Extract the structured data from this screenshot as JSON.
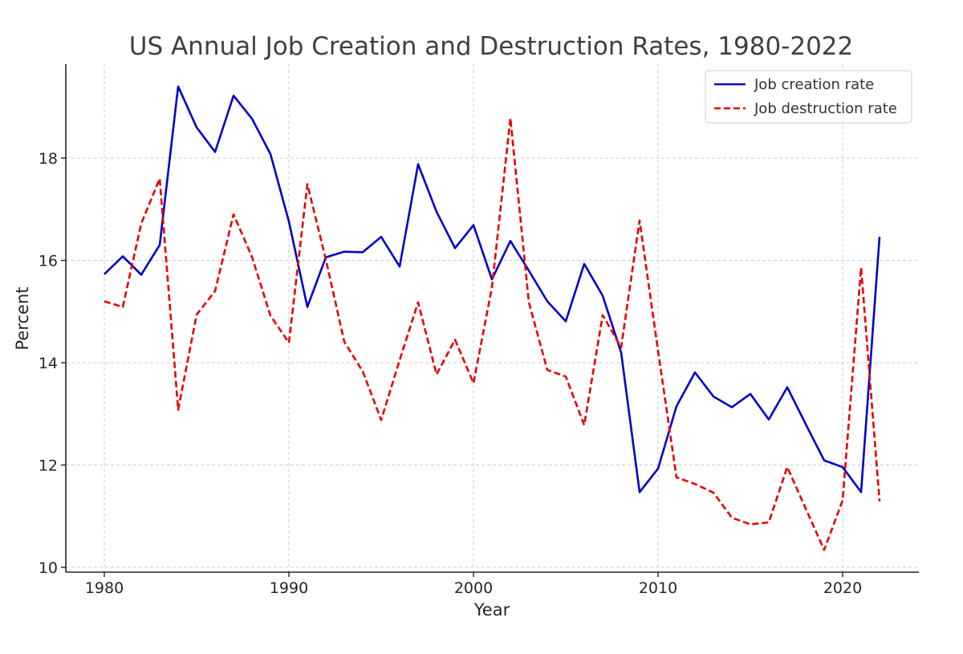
{
  "chart_data": {
    "type": "line",
    "title": "US Annual Job Creation and Destruction Rates, 1980-2022",
    "xlabel": "Year",
    "ylabel": "Percent",
    "xlim": [
      1978,
      2024
    ],
    "ylim": [
      9.8,
      19.8
    ],
    "x_ticks": [
      1980,
      1990,
      2000,
      2010,
      2020
    ],
    "y_ticks": [
      10,
      12,
      14,
      16,
      18
    ],
    "grid": true,
    "legend_position": "top-right",
    "x": [
      1980,
      1981,
      1982,
      1983,
      1984,
      1985,
      1986,
      1987,
      1988,
      1989,
      1990,
      1991,
      1992,
      1993,
      1994,
      1995,
      1996,
      1997,
      1998,
      1999,
      2000,
      2001,
      2002,
      2003,
      2004,
      2005,
      2006,
      2007,
      2008,
      2009,
      2010,
      2011,
      2012,
      2013,
      2014,
      2015,
      2016,
      2017,
      2018,
      2019,
      2020,
      2021,
      2022
    ],
    "series": [
      {
        "name": "Job creation rate",
        "color": "#0000cc",
        "style": "solid",
        "values": [
          15.73,
          16.08,
          15.72,
          16.3,
          19.4,
          18.6,
          18.12,
          19.22,
          18.77,
          18.08,
          16.76,
          15.09,
          16.06,
          16.17,
          16.16,
          16.46,
          15.88,
          17.88,
          16.95,
          16.24,
          16.69,
          15.63,
          16.38,
          15.8,
          15.2,
          14.81,
          15.93,
          15.31,
          14.2,
          11.47,
          11.93,
          13.15,
          13.81,
          13.34,
          13.13,
          13.39,
          12.89,
          13.52,
          12.8,
          12.09,
          11.96,
          11.47,
          16.46
        ]
      },
      {
        "name": "Job destruction rate",
        "color": "#e60000",
        "style": "dashed",
        "values": [
          15.2,
          15.09,
          16.72,
          17.6,
          13.08,
          14.94,
          15.4,
          16.9,
          16.07,
          14.92,
          14.39,
          17.49,
          16.02,
          14.41,
          13.83,
          12.88,
          14.05,
          15.18,
          13.77,
          14.45,
          13.6,
          15.47,
          18.78,
          15.18,
          13.86,
          13.73,
          12.78,
          14.93,
          14.3,
          16.78,
          14.23,
          11.76,
          11.63,
          11.46,
          10.97,
          10.84,
          10.88,
          11.96,
          11.15,
          10.34,
          11.31,
          15.86,
          11.29
        ]
      }
    ]
  }
}
